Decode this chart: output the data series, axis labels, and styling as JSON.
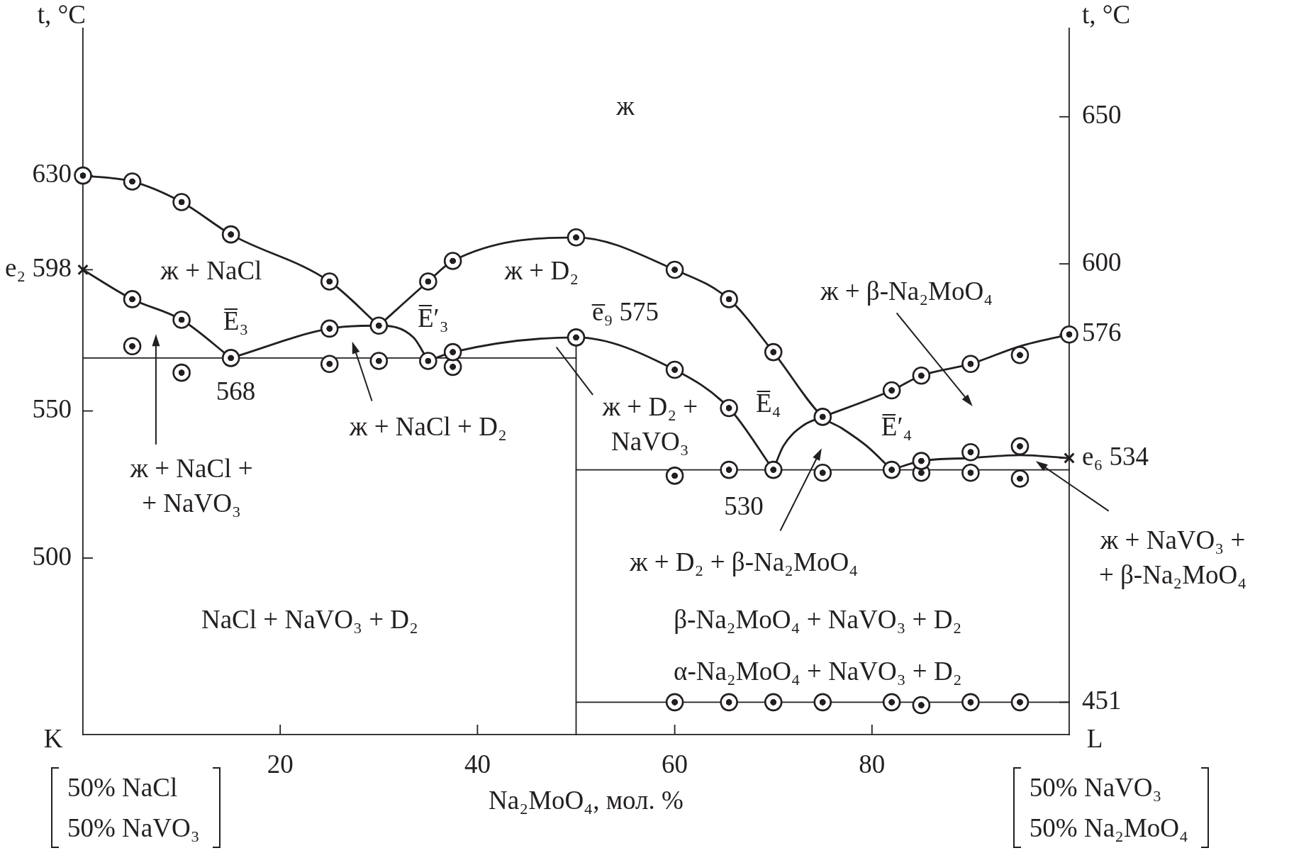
{
  "chart_data": {
    "type": "line",
    "xlabel": "Na₂MoO₄, мол. %",
    "ylabel": "t, °C",
    "y2label": "t, °C",
    "xlim": [
      0,
      100
    ],
    "xticks": [
      20,
      40,
      60,
      80
    ],
    "ylim": [
      440,
      680
    ],
    "yticks": [
      500,
      550,
      {
        "value": 598,
        "label": "e₂ 598"
      },
      630
    ],
    "y2lim": [
      440,
      680
    ],
    "y2ticks": [
      451,
      {
        "value": 534,
        "label": "e₆ 534"
      },
      576,
      600,
      650
    ],
    "grid": false,
    "legend": false,
    "line_style": "solid",
    "series": [
      {
        "marker": "circle",
        "color": "#231f20",
        "x": [
          0,
          5,
          10,
          15,
          25,
          30
        ],
        "values": [
          630,
          628,
          621,
          610,
          594,
          579
        ]
      },
      {
        "color": "#231f20",
        "x": [
          30,
          35,
          37.5,
          50,
          60,
          65.5,
          70,
          75,
          77,
          79.5,
          82
        ],
        "values": [
          579,
          594,
          601,
          609,
          598,
          588,
          570,
          548,
          544,
          538,
          530
        ]
      },
      {
        "color": "#231f20",
        "x": [
          75,
          82,
          85,
          90,
          95,
          100
        ],
        "values": [
          548,
          557,
          562,
          566,
          572,
          576
        ]
      },
      {
        "color": "#231f20",
        "x": [
          0,
          5,
          10,
          15
        ],
        "values": [
          598,
          588,
          581,
          568
        ]
      },
      {
        "color": "#231f20",
        "x": [
          15,
          25,
          30,
          33.5,
          35
        ],
        "values": [
          568,
          578,
          579,
          575,
          567
        ]
      },
      {
        "marker": "circle",
        "color": "#231f20",
        "x": [
          35,
          37.5,
          50,
          60,
          65.5,
          70
        ],
        "values": [
          567,
          570,
          575,
          564,
          551,
          530
        ]
      },
      {
        "color": "#231f20",
        "x": [
          70,
          71,
          73,
          75
        ],
        "values": [
          530,
          538,
          545,
          548
        ]
      },
      {
        "color": "#231f20",
        "x": [
          82,
          85,
          90,
          95,
          100
        ],
        "values": [
          530,
          533,
          534,
          535,
          534
        ]
      },
      {
        "color": "#231f20",
        "x": [
          0,
          50
        ],
        "values": [
          568,
          568
        ]
      },
      {
        "color": "#231f20",
        "x": [
          50,
          50
        ],
        "values": [
          440,
          575
        ]
      },
      {
        "color": "#231f20",
        "x": [
          50,
          100
        ],
        "values": [
          530,
          530
        ]
      },
      {
        "color": "#231f20",
        "x": [
          50,
          100
        ],
        "values": [
          451,
          451
        ]
      },
      {
        "type": "scatter",
        "marker": "circle",
        "color": "#231f20",
        "x": [
          5,
          10,
          15,
          5,
          10,
          25,
          30,
          25,
          35,
          37.5,
          37.5,
          50,
          60,
          65.5,
          70,
          75,
          60,
          65.5,
          75,
          82,
          85,
          90,
          95,
          85,
          90,
          95,
          82,
          85,
          90,
          95,
          100,
          60,
          65.5,
          70,
          75,
          82,
          85,
          90,
          95
        ],
        "values": [
          588,
          581,
          568,
          572,
          563,
          566,
          567,
          578,
          594,
          601,
          565,
          609,
          598,
          588,
          570,
          548,
          528,
          530,
          529,
          530,
          529,
          529,
          527,
          533,
          536,
          538,
          557,
          562,
          566,
          569,
          576,
          451,
          451,
          451,
          451,
          451,
          450,
          451,
          451
        ]
      },
      {
        "type": "scatter",
        "marker": "cross",
        "color": "#231f20",
        "x": [
          0,
          100
        ],
        "values": [
          598,
          534
        ]
      }
    ],
    "annotations": [
      "ж",
      "ж + NaCl",
      "ж + D₂",
      "ж + β-Na₂MoO₄",
      "E̅₃",
      "E̅′₃",
      "e̅₉ 575",
      "568",
      "ж + NaCl + D₂",
      "ж + NaCl +\n+ NaVO₃",
      "ж + D₂ +\nNaVO₃",
      "E̅₄",
      "E̅′₄",
      "530",
      "ж + D₂ + β-Na₂MoO₄",
      "ж + NaVO₃ +\n+ β-Na₂MoO₄",
      "NaCl + NaVO₃ + D₂",
      "β-Na₂MoO₄ + NaVO₃ + D₂",
      "α-Na₂MoO₄ + NaVO₃ + D₂",
      "K",
      "L",
      "50% NaCl\n50% NaVO₃",
      "50% NaVO₃\n50% Na₂MoO₄"
    ]
  }
}
